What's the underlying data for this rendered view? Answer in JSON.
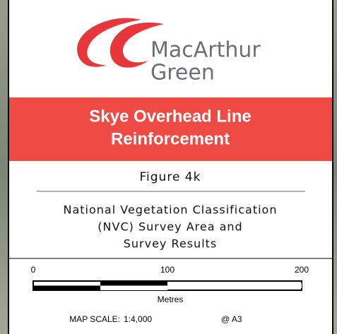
{
  "logo": {
    "line1": "MacArthur",
    "line2": "Green"
  },
  "banner": {
    "line1": "Skye Overhead Line",
    "line2": "Reinforcement"
  },
  "figure": "Figure 4k",
  "description": [
    "National Vegetation Classification",
    "(NVC) Survey Area and",
    "Survey Results"
  ],
  "scale_bar": {
    "ticks": [
      0,
      100,
      200
    ],
    "unit": "Metres"
  },
  "map_scale": {
    "label": "MAP SCALE:",
    "value": "1:4,000",
    "paper": "@ A3"
  }
}
